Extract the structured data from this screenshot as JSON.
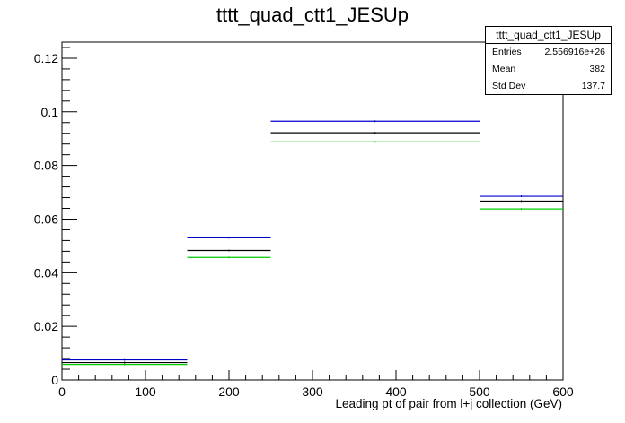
{
  "chart_data": {
    "type": "step",
    "title": "tttt_quad_ctt1_JESUp",
    "xlabel": "Leading pt of pair from l+j collection (GeV)",
    "ylabel": "",
    "xlim": [
      0,
      600
    ],
    "ylim": [
      0,
      0.126
    ],
    "x_ticks": [
      0,
      100,
      200,
      300,
      400,
      500,
      600
    ],
    "y_ticks": [
      0,
      0.02,
      0.04,
      0.06,
      0.08,
      0.1,
      0.12
    ],
    "bin_edges": [
      0,
      150,
      250,
      500,
      600
    ],
    "grid": false,
    "series": [
      {
        "color": "#0000cc",
        "values": [
          0.0075,
          0.053,
          0.0965,
          0.0685
        ]
      },
      {
        "color": "#000000",
        "values": [
          0.0065,
          0.0483,
          0.0922,
          0.0667
        ]
      },
      {
        "color": "#00cc00",
        "values": [
          0.0058,
          0.0457,
          0.0888,
          0.0638
        ]
      }
    ],
    "stats_box": {
      "title": "tttt_quad_ctt1_JESUp",
      "entries_label": "Entries",
      "entries_value": "2.556916e+26",
      "mean_label": "Mean",
      "mean_value": "382",
      "stddev_label": "Std Dev",
      "stddev_value": "137.7"
    }
  }
}
